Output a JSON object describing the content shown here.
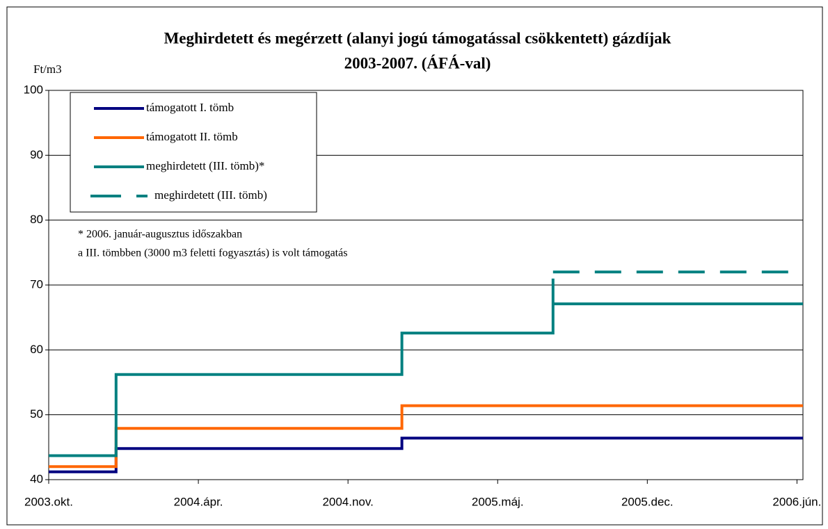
{
  "chart_data": {
    "type": "line",
    "title": "Meghirdetett és megérzett (alanyi jogú támogatással csökkentett) gázdíjak",
    "subtitle": "2003-2007. (ÁFÁ-val)",
    "y_label": "Ft/m3",
    "annotations": [
      "* 2006. január-augusztus időszakban",
      "a III. tömbben (3000 m3 feletti fogyasztás) is volt támogatás"
    ],
    "xlim": [
      0,
      5.04
    ],
    "xticks": [
      {
        "value": 0,
        "label": "2003.okt."
      },
      {
        "value": 1,
        "label": "2004.ápr."
      },
      {
        "value": 2,
        "label": "2004.nov."
      },
      {
        "value": 3,
        "label": "2005.máj."
      },
      {
        "value": 4,
        "label": "2005.dec."
      },
      {
        "value": 5,
        "label": "2006.jún."
      }
    ],
    "ylim": [
      40,
      100
    ],
    "yticks": [
      40,
      50,
      60,
      70,
      80,
      90,
      100
    ],
    "grid": true,
    "series": [
      {
        "name": "támogatott I. tömb",
        "color": "#000080",
        "dashed": false,
        "x": [
          0,
          0.45,
          0.45,
          2.36,
          2.36,
          5.04
        ],
        "values": [
          41.2,
          41.2,
          44.8,
          44.8,
          46.4,
          46.4
        ]
      },
      {
        "name": "támogatott II. tömb",
        "color": "#ff6600",
        "dashed": false,
        "x": [
          0,
          0.45,
          0.45,
          2.36,
          2.36,
          5.04
        ],
        "values": [
          42,
          42,
          47.9,
          47.9,
          51.4,
          51.4
        ]
      },
      {
        "name": "meghirdetett (III. tömb)*",
        "color": "#008080",
        "dashed": false,
        "x": [
          0,
          0.45,
          0.45,
          2.36,
          2.36,
          3.37,
          3.37,
          3.37,
          5.04
        ],
        "values": [
          43.7,
          43.7,
          56.2,
          56.2,
          62.6,
          62.6,
          71,
          67.1,
          67.1
        ]
      },
      {
        "name": "meghirdetett (III. tömb)",
        "color": "#008080",
        "dashed": true,
        "x": [
          3.37,
          5.03
        ],
        "values": [
          72,
          72
        ]
      }
    ]
  }
}
